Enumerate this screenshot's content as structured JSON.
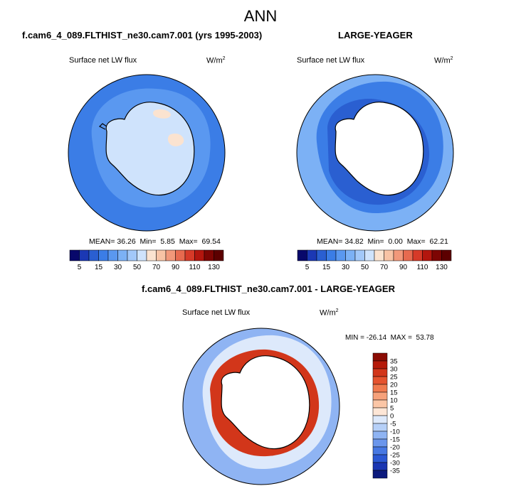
{
  "figure_title": "ANN",
  "chart_data": [
    {
      "type": "heatmap",
      "projection": "polar stereographic, south pole",
      "title": "f.cam6_4_089.FLTHIST_ne30.cam7.001 (yrs 1995-2003)",
      "variable": "Surface net LW flux",
      "units_base": "W/m",
      "units_exp": "2",
      "stats": {
        "mean_label": "MEAN=",
        "mean": "36.26",
        "min_label": "Min=",
        "min": "5.85",
        "max_label": "Max=",
        "max": "69.54"
      },
      "colorbar_levels": [
        5,
        10,
        15,
        20,
        30,
        40,
        50,
        60,
        70,
        80,
        90,
        100,
        110,
        120,
        130
      ],
      "colorbar_tick_labels": [
        "5",
        "15",
        "30",
        "50",
        "70",
        "90",
        "110",
        "130"
      ],
      "colorbar_colors": [
        "#08086b",
        "#1b38b4",
        "#2a5fd1",
        "#3b7de6",
        "#5a98f0",
        "#7cb1f5",
        "#a2c8f9",
        "#cfe3fc",
        "#fbe3d0",
        "#f8c3a5",
        "#f2987a",
        "#e76a4f",
        "#d63a28",
        "#b3160e",
        "#7d0503",
        "#5c0000"
      ],
      "region_values": {
        "ocean_far": 18,
        "ocean_near": 30,
        "antarctica": 55,
        "plateau_high": 68
      }
    },
    {
      "type": "heatmap",
      "projection": "polar stereographic, south pole",
      "title": "LARGE-YEAGER",
      "variable": "Surface net LW flux",
      "units_base": "W/m",
      "units_exp": "2",
      "stats": {
        "mean_label": "MEAN=",
        "mean": "34.82",
        "min_label": "Min=",
        "min": "0.00",
        "max_label": "Max=",
        "max": "62.21"
      },
      "colorbar_levels": [
        5,
        10,
        15,
        20,
        30,
        40,
        50,
        60,
        70,
        80,
        90,
        100,
        110,
        120,
        130
      ],
      "colorbar_tick_labels": [
        "5",
        "15",
        "30",
        "50",
        "70",
        "90",
        "110",
        "130"
      ],
      "colorbar_colors": [
        "#08086b",
        "#1b38b4",
        "#2a5fd1",
        "#3b7de6",
        "#5a98f0",
        "#7cb1f5",
        "#a2c8f9",
        "#cfe3fc",
        "#fbe3d0",
        "#f8c3a5",
        "#f2987a",
        "#e76a4f",
        "#d63a28",
        "#b3160e",
        "#7d0503",
        "#5c0000"
      ],
      "region_values": {
        "ocean_far": 35,
        "ocean_near": 20,
        "coast_ring": 12,
        "antarctica": "missing"
      }
    },
    {
      "type": "heatmap",
      "projection": "polar stereographic, south pole",
      "title": "f.cam6_4_089.FLTHIST_ne30.cam7.001 - LARGE-YEAGER",
      "variable": "Surface net LW flux",
      "units_base": "W/m",
      "units_exp": "2",
      "stats": {
        "min_label": "MIN =",
        "min": "-26.14",
        "max_label": "MAX =",
        "max": "53.78"
      },
      "colorbar_orientation": "vertical",
      "colorbar_tick_labels": [
        "35",
        "30",
        "25",
        "20",
        "15",
        "10",
        "5",
        "0",
        "-5",
        "-10",
        "-15",
        "-20",
        "-25",
        "-30",
        "-35"
      ],
      "colorbar_colors": [
        "#8b0c04",
        "#b51a0a",
        "#d2361a",
        "#e5532e",
        "#f07a4e",
        "#f6a17a",
        "#fbc6a6",
        "#fde6d6",
        "#dde9fb",
        "#b6d0f8",
        "#8fb4f3",
        "#6b96ec",
        "#4778e3",
        "#2b58d4",
        "#1a36b2",
        "#0c1a7d"
      ],
      "region_values": {
        "ocean_far": -15,
        "ocean_mid": -5,
        "coast_ring": 25,
        "antarctica": "missing"
      }
    }
  ]
}
